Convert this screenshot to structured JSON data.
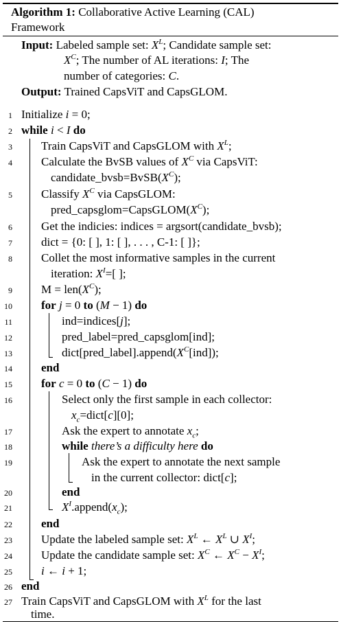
{
  "title": {
    "label": "Algorithm 1:",
    "text1": "Collaborative Active Learning (CAL)",
    "text2": "Framework"
  },
  "input": {
    "label": "Input:",
    "l1a": "Labeled sample set:",
    "l1b": "; Candidate sample set:",
    "l2": "; The number of AL iterations:",
    "l2b": "; The",
    "l3": "number of categories:"
  },
  "output": {
    "label": "Output:",
    "text": "Trained CapsViT and CapsGLOM."
  },
  "kw": {
    "while": "while",
    "do": "do",
    "for": "for",
    "to": "to",
    "end": "end"
  },
  "lines": {
    "l1": "Initialize",
    "l3a": "Train CapsViT and CapsGLOM with",
    "l4a": "Calculate the BvSB values of",
    "l4b": "via CapsViT:",
    "l4c": "candidate_bvsb=BvSB",
    "l5a": "Classify",
    "l5b": "via CapsGLOM:",
    "l5c": "pred_capsglom=CapsGLOM",
    "l6": "Get the indicies: indices = argsort(candidate_bvsb);",
    "l7": "dict = {0: [ ], 1: [ ], . . . , C-1: [ ]};",
    "l8a": "Collet the most informative samples in the current",
    "l8b": "iteration:",
    "l8c": "=[ ];",
    "l9": "M = len",
    "l11": "ind=indices[",
    "l12": "pred_label=pred_capsglom[ind];",
    "l13": "dict[pred_label].append",
    "l16a": "Select only the first sample in each collector:",
    "l16b": "=dict[",
    "l16c": "][0];",
    "l17": "Ask the expert to annotate",
    "l18": "there’s a difficulty here",
    "l19a": "Ask the expert to annotate the next sample",
    "l19b": "in the current collector: dict[",
    "l21": ".append",
    "l23": "Update the labeled sample set:",
    "l24": "Update the candidate sample set:",
    "l27a": "Train CapsViT and CapsGLOM with",
    "l27b": "for the last",
    "l27c": "time."
  },
  "line_numbers": [
    "1",
    "2",
    "3",
    "4",
    "5",
    "6",
    "7",
    "8",
    "9",
    "10",
    "11",
    "12",
    "13",
    "14",
    "15",
    "16",
    "17",
    "18",
    "19",
    "20",
    "21",
    "22",
    "23",
    "24",
    "25",
    "26",
    "27"
  ]
}
